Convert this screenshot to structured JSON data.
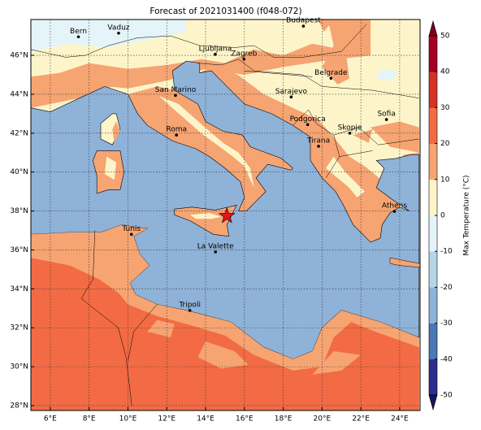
{
  "chart_data": {
    "type": "map",
    "title": "Forecast of 2021031400 (f048-072)",
    "xlim": [
      5,
      25.05
    ],
    "ylim": [
      27.75,
      47.84
    ],
    "xticks": [
      {
        "value": 6,
        "label": "6°E"
      },
      {
        "value": 8,
        "label": "8°E"
      },
      {
        "value": 10,
        "label": "10°E"
      },
      {
        "value": 12,
        "label": "12°E"
      },
      {
        "value": 14,
        "label": "14°E"
      },
      {
        "value": 16,
        "label": "16°E"
      },
      {
        "value": 18,
        "label": "18°E"
      },
      {
        "value": 20,
        "label": "20°E"
      },
      {
        "value": 22,
        "label": "22°E"
      },
      {
        "value": 24,
        "label": "24°E"
      }
    ],
    "yticks": [
      {
        "value": 28,
        "label": "28°N"
      },
      {
        "value": 30,
        "label": "30°N"
      },
      {
        "value": 32,
        "label": "32°N"
      },
      {
        "value": 34,
        "label": "34°N"
      },
      {
        "value": 36,
        "label": "36°N"
      },
      {
        "value": 38,
        "label": "38°N"
      },
      {
        "value": 40,
        "label": "40°N"
      },
      {
        "value": 42,
        "label": "42°N"
      },
      {
        "value": 44,
        "label": "44°N"
      },
      {
        "value": 46,
        "label": "46°N"
      }
    ],
    "grid": true,
    "cities": [
      "Bern",
      "Vaduz",
      "Budapest",
      "Ljubljana",
      "Zagreb",
      "Belgrade",
      "San Marino",
      "Sarajevo",
      "Sofia",
      "Podgorica",
      "Skopje",
      "Roma",
      "Tirana",
      "Athens",
      "Tunis",
      "La Valette",
      "Tripoli"
    ],
    "colorbar": {
      "label": "Max Temperature (°C)",
      "ylim": [
        -50,
        50
      ],
      "yticks": [
        -50,
        -40,
        -30,
        -20,
        -10,
        0,
        10,
        20,
        30,
        40,
        50
      ],
      "colors": [
        "#2c2d8c",
        "#4a78b5",
        "#8fb2d8",
        "#b4d6e8",
        "#e4f4f8",
        "#fdf5c9",
        "#f6a472",
        "#f26b44",
        "#d63027",
        "#a50026"
      ],
      "under_color": "#16165e",
      "over_color": "#7a0022"
    }
  }
}
